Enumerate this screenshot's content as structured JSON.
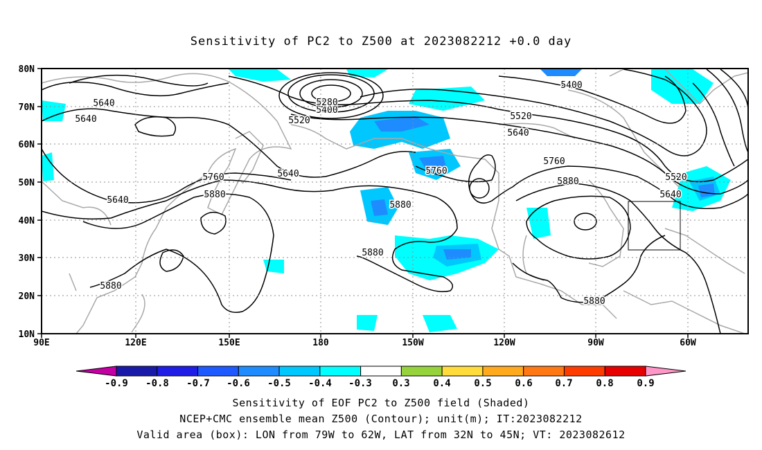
{
  "title": "Sensitivity of PC2 to Z500 at 2023082212 +0.0 day",
  "lat_labels": [
    "80N",
    "70N",
    "60N",
    "50N",
    "40N",
    "30N",
    "20N",
    "10N"
  ],
  "lon_labels": [
    "90E",
    "120E",
    "150E",
    "180",
    "150W",
    "120W",
    "90W",
    "60W"
  ],
  "contour_labels": [
    "5640",
    "5640",
    "5640",
    "5760",
    "5880",
    "5640",
    "5400",
    "5280",
    "5520",
    "5760",
    "5880",
    "5880",
    "5880",
    "5400",
    "5520",
    "5640",
    "5760",
    "5880",
    "5880",
    "5520",
    "5640"
  ],
  "colorbar": {
    "labels": [
      "-0.9",
      "-0.8",
      "-0.7",
      "-0.6",
      "-0.5",
      "-0.4",
      "-0.3",
      "0.3",
      "0.4",
      "0.5",
      "0.6",
      "0.7",
      "0.8",
      "0.9"
    ],
    "colors": [
      "#c400a4",
      "#1a1aa8",
      "#1e1ee6",
      "#1e5aff",
      "#1e8cff",
      "#00c8ff",
      "#00ffff",
      "#ffffff",
      "#96d23c",
      "#ffdc3c",
      "#ffaa1e",
      "#ff7814",
      "#ff3c00",
      "#e60000",
      "#ff96c8"
    ]
  },
  "valid_box": {
    "lon_from": "79W",
    "lon_to": "62W",
    "lat_from": "32N",
    "lat_to": "45N"
  },
  "footer": {
    "line1": "Sensitivity of EOF PC2 to Z500 field (Shaded)",
    "line2": "NCEP+CMC ensemble mean Z500 (Contour); unit(m); IT:2023082212",
    "line3": "Valid area (box): LON from 79W to 62W, LAT from 32N to 45N; VT: 2023082612"
  }
}
